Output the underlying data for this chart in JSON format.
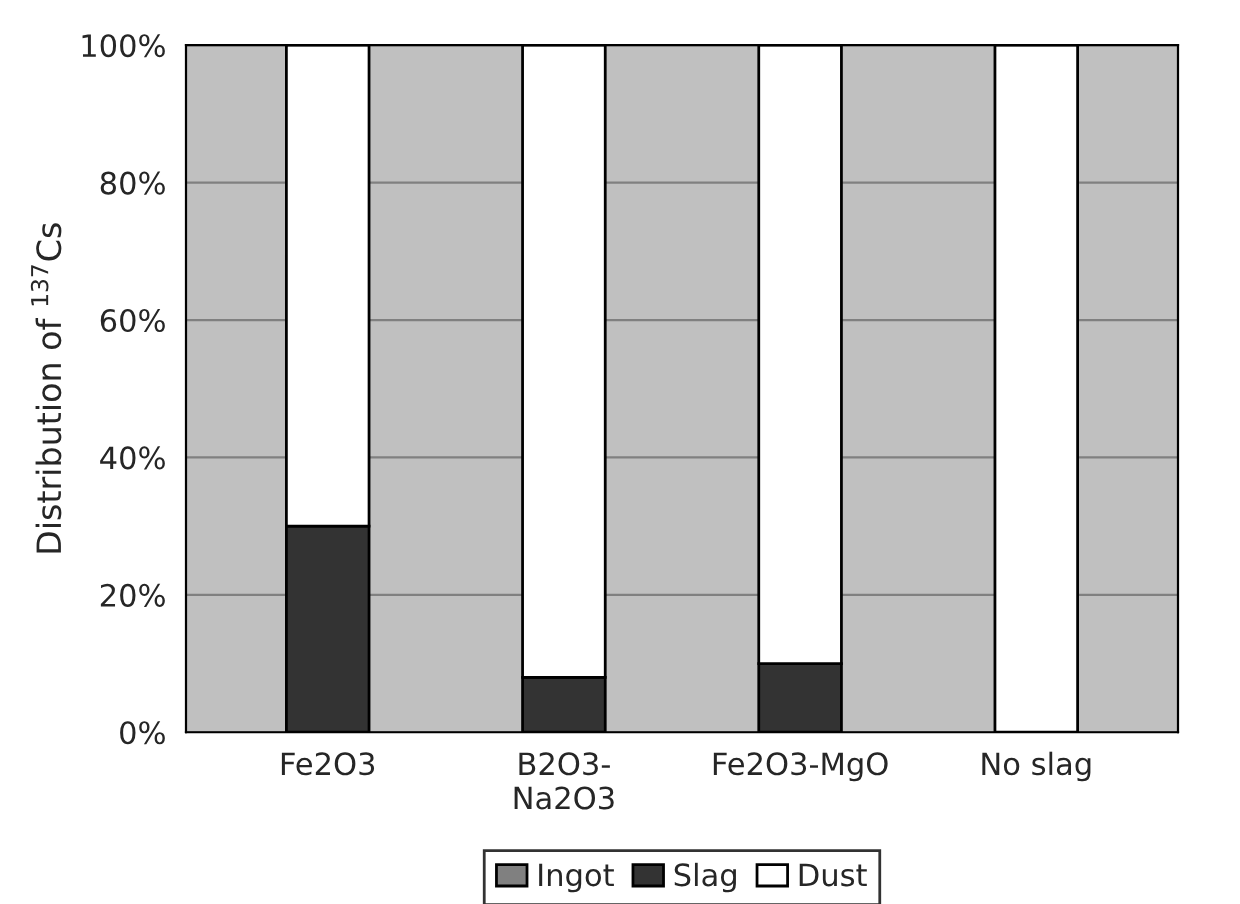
{
  "chart_data": {
    "type": "bar",
    "stacked": true,
    "ylabel": "Distribution of $^{137}$Cs",
    "categories": [
      "Fe2O3",
      "B2O3-\nNa2O3",
      "Fe2O3-MgO",
      "No slag"
    ],
    "series": [
      {
        "name": "Ingot",
        "color": "#808080",
        "values": [
          0,
          0,
          0,
          0
        ]
      },
      {
        "name": "Slag",
        "color": "#333333",
        "values": [
          30,
          8,
          10,
          0
        ]
      },
      {
        "name": "Dust",
        "color": "#ffffff",
        "values": [
          70,
          92,
          90,
          100
        ]
      }
    ],
    "ylim": [
      0,
      100
    ],
    "yticks": [
      {
        "value": 0,
        "label": "0%"
      },
      {
        "value": 20,
        "label": "20%"
      },
      {
        "value": 40,
        "label": "40%"
      },
      {
        "value": 60,
        "label": "60%"
      },
      {
        "value": 80,
        "label": "80%"
      },
      {
        "value": 100,
        "label": "100%"
      }
    ],
    "grid": "y",
    "legend": "bottom"
  }
}
